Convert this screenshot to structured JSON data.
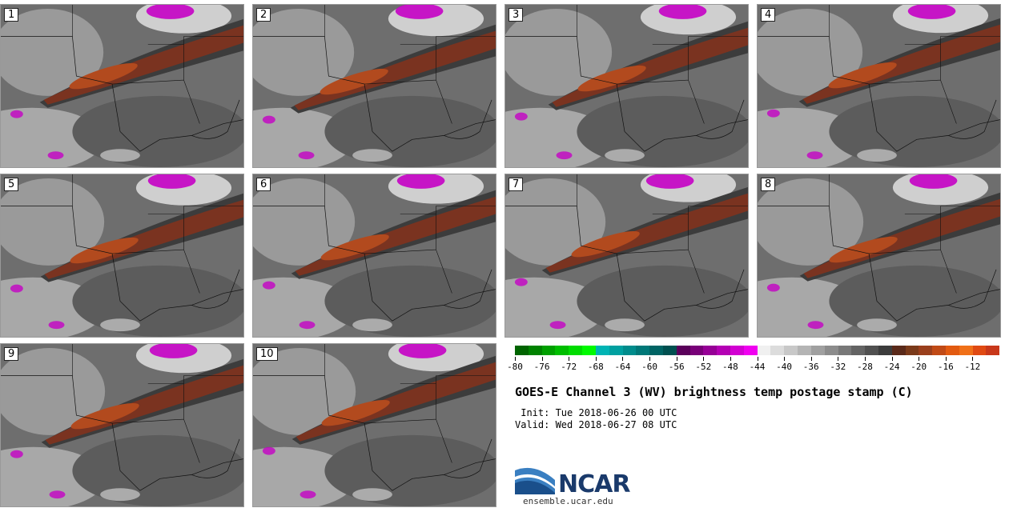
{
  "panels": [
    "1",
    "2",
    "3",
    "4",
    "5",
    "6",
    "7",
    "8",
    "9",
    "10"
  ],
  "colorbar": {
    "colors": [
      "#006400",
      "#008200",
      "#00a000",
      "#00be00",
      "#00dc00",
      "#00fa00",
      "#00b4b4",
      "#00a0a0",
      "#008c8c",
      "#007878",
      "#006464",
      "#005050",
      "#5a005a",
      "#780078",
      "#960096",
      "#b400b4",
      "#d200d2",
      "#f000f0",
      "#f0f0f0",
      "#dcdcdc",
      "#c8c8c8",
      "#b4b4b4",
      "#a0a0a0",
      "#8c8c8c",
      "#787878",
      "#646464",
      "#505050",
      "#3c3c3c",
      "#5a2a1a",
      "#7a3a1a",
      "#9a3f1c",
      "#c04a16",
      "#e25a10",
      "#f07018",
      "#e04a12",
      "#c8381a"
    ],
    "ticks": [
      "-80",
      "-76",
      "-72",
      "-68",
      "-64",
      "-60",
      "-56",
      "-52",
      "-48",
      "-44",
      "-40",
      "-36",
      "-32",
      "-28",
      "-24",
      "-20",
      "-16",
      "-12"
    ]
  },
  "title": "GOES-E Channel 3 (WV) brightness temp postage stamp (C)",
  "init": " Init: Tue 2018-06-26 00 UTC",
  "valid": "Valid: Wed 2018-06-27 08 UTC",
  "logo": {
    "text": "NCAR",
    "url": "ensemble.ucar.edu"
  }
}
